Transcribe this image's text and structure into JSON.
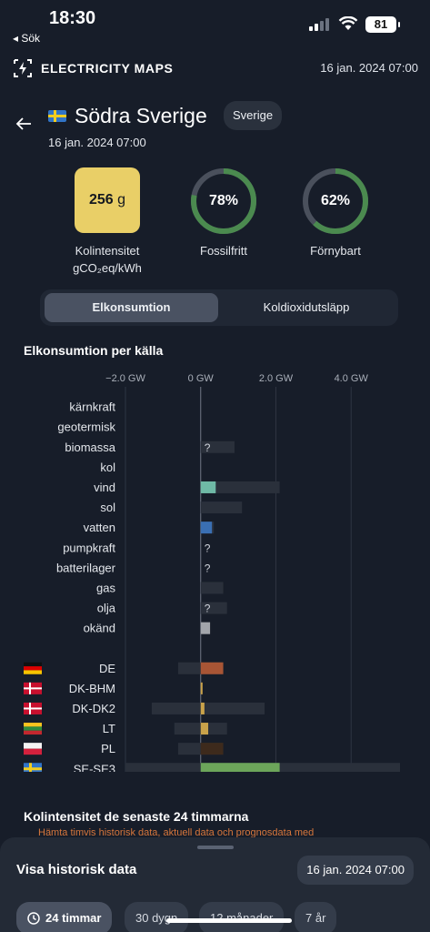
{
  "status": {
    "time": "18:30",
    "back": "◂ Sök",
    "battery": "81"
  },
  "app": {
    "title": "ELECTRICITY MAPS",
    "date": "16 jan. 2024 07:00"
  },
  "zone": {
    "name": "Södra Sverige",
    "country": "Sverige",
    "date": "16 jan. 2024 07:00"
  },
  "metrics": {
    "carbon_value": "256",
    "carbon_unit": "g",
    "carbon_label1": "Kolintensitet",
    "carbon_label2": "gCO₂eq/kWh",
    "fossil_free_value": "78%",
    "fossil_free_fraction": 0.78,
    "fossil_free_label": "Fossilfritt",
    "renewable_value": "62%",
    "renewable_fraction": 0.62,
    "renewable_label": "Förnybart",
    "colors": {
      "carbon_box": "#e9cf67",
      "ring": "#4b8a4f",
      "ring_track": "#4a505c"
    }
  },
  "tabs": {
    "consumption": "Elkonsumtion",
    "emissions": "Koldioxidutsläpp",
    "active": "consumption"
  },
  "chart_data": {
    "type": "bar",
    "title": "Elkonsumtion per källa",
    "x_ticks": [
      "−2.0 GW",
      "0 GW",
      "2.0 GW",
      "4.0 GW"
    ],
    "x_tick_values": [
      -2.0,
      0,
      2.0,
      4.0
    ],
    "xlim": [
      -2.0,
      5.3
    ],
    "sources": [
      {
        "name": "kärnkraft",
        "value": 0,
        "capacity": 0,
        "unknown": false,
        "color": "#9a9fa8"
      },
      {
        "name": "geotermisk",
        "value": 0,
        "capacity": 0,
        "unknown": false,
        "color": "#9a9fa8"
      },
      {
        "name": "biomassa",
        "value": 0,
        "capacity": 0.9,
        "unknown": true,
        "color": "#9a9fa8"
      },
      {
        "name": "kol",
        "value": 0,
        "capacity": 0,
        "unknown": false,
        "color": "#9a9fa8"
      },
      {
        "name": "vind",
        "value": 0.4,
        "capacity": 2.1,
        "unknown": false,
        "color": "#6fb9a6"
      },
      {
        "name": "sol",
        "value": 0,
        "capacity": 1.1,
        "unknown": false,
        "color": "#e2c24a"
      },
      {
        "name": "vatten",
        "value": 0.3,
        "capacity": 0.35,
        "unknown": false,
        "color": "#3a6fb3"
      },
      {
        "name": "pumpkraft",
        "value": 0,
        "capacity": 0,
        "unknown": true,
        "color": "#9a9fa8"
      },
      {
        "name": "batterilager",
        "value": 0,
        "capacity": 0,
        "unknown": true,
        "color": "#9a9fa8"
      },
      {
        "name": "gas",
        "value": 0,
        "capacity": 0.6,
        "unknown": false,
        "color": "#9a9fa8"
      },
      {
        "name": "olja",
        "value": 0,
        "capacity": 0.7,
        "unknown": true,
        "color": "#9a9fa8"
      },
      {
        "name": "okänd",
        "value": 0.25,
        "capacity": 0.25,
        "unknown": false,
        "color": "#a2a5ab"
      }
    ],
    "exchanges": [
      {
        "name": "DE",
        "flag": "de",
        "value": 0.6,
        "capacity_min": -0.6,
        "capacity_max": 0.6,
        "color": "#a85535"
      },
      {
        "name": "DK-BHM",
        "flag": "dk",
        "value": 0.05,
        "capacity_min": 0,
        "capacity_max": 0.05,
        "color": "#c9a24a"
      },
      {
        "name": "DK-DK2",
        "flag": "dk",
        "value": 0.1,
        "capacity_min": -1.3,
        "capacity_max": 1.7,
        "color": "#c9a24a"
      },
      {
        "name": "LT",
        "flag": "lt",
        "value": 0.2,
        "capacity_min": -0.7,
        "capacity_max": 0.7,
        "color": "#c9a24a"
      },
      {
        "name": "PL",
        "flag": "pl",
        "value": 0.6,
        "capacity_min": -0.6,
        "capacity_max": 0.6,
        "color": "#3d2a1c"
      },
      {
        "name": "SE-SE3",
        "flag": "se",
        "value": 2.1,
        "capacity_min": -2.0,
        "capacity_max": 5.3,
        "color": "#6ca55a"
      }
    ]
  },
  "history": {
    "title": "Kolintensitet de senaste 24 timmarna",
    "note": "Hämta timvis historisk data, aktuell data och prognosdata med"
  },
  "sheet": {
    "title": "Visa historisk data",
    "date": "16 jan. 2024 07:00",
    "ranges": [
      "24 timmar",
      "30 dygn",
      "12 månader",
      "7 år"
    ]
  }
}
